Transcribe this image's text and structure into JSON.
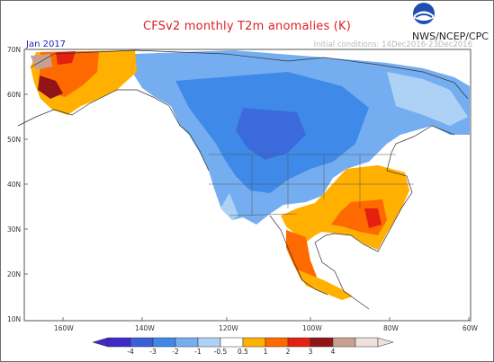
{
  "title": "CFSv2 monthly T2m anomalies (K)",
  "agency": "NWS/NCEP/CPC",
  "initial_conditions": "Initial conditions: 14Dec2016-23Dec2016",
  "valid_period": "Jan 2017",
  "lat_labels": [
    "70N",
    "60N",
    "50N",
    "40N",
    "30N",
    "20N",
    "10N"
  ],
  "lon_labels": [
    "160W",
    "140W",
    "120W",
    "100W",
    "80W",
    "60W"
  ],
  "legend": {
    "labels": [
      "-4",
      "-3",
      "-2",
      "-1",
      "-0.5",
      "0.5",
      "1",
      "2",
      "3",
      "4"
    ],
    "colors": [
      "#3f2ac8",
      "#3b5fd8",
      "#3f8ae8",
      "#74aef0",
      "#aed2f6",
      "#ffffff",
      "#ffb000",
      "#ff6a00",
      "#e52010",
      "#901418",
      "#c8a090",
      "#f0e0dc"
    ]
  }
}
